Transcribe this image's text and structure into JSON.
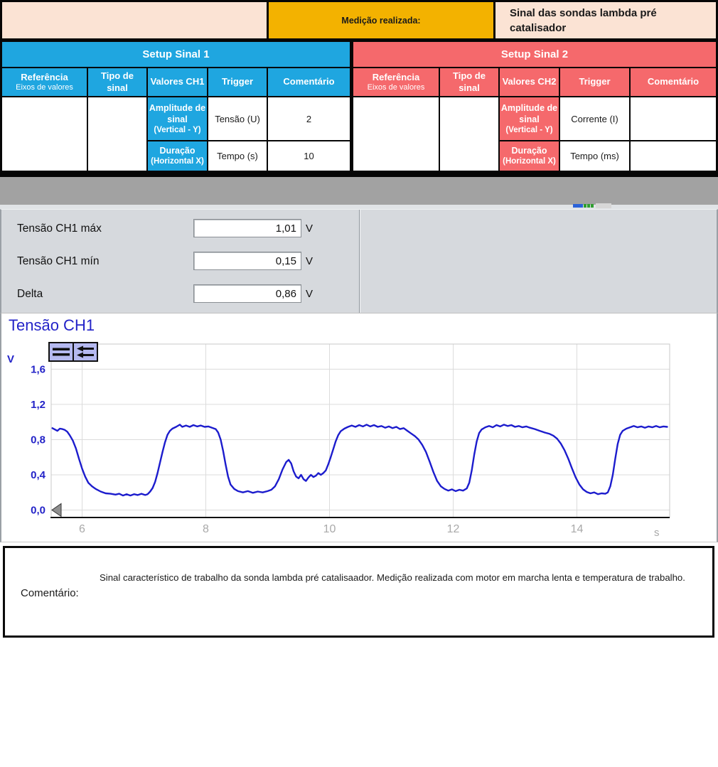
{
  "header": {
    "measured_label": "Medição realizada:",
    "measured_value": "Sinal das sondas lambda pré catalisador"
  },
  "setup_tables": [
    {
      "title": "Setup Sinal 1",
      "columns": [
        {
          "l1": "Referência",
          "l2": "Eixos de valores"
        },
        {
          "l1": "Tipo de",
          "l2": "sinal"
        },
        {
          "l1": "Valores CH1",
          "l2": ""
        },
        {
          "l1": "Trigger",
          "l2": ""
        },
        {
          "l1": "Comentário",
          "l2": ""
        }
      ],
      "rows": [
        {
          "ref1": "Amplitude de sinal",
          "ref2": "(Vertical - Y)",
          "tipo": "Tensão (U)",
          "valor": "2"
        },
        {
          "ref1": "Duração",
          "ref2": "(Horizontal X)",
          "tipo": "Tempo (s)",
          "valor": "10"
        }
      ],
      "trigger": "",
      "comentario": ""
    },
    {
      "title": "Setup Sinal 2",
      "columns": [
        {
          "l1": "Referência",
          "l2": "Eixos de valores"
        },
        {
          "l1": "Tipo de",
          "l2": "sinal"
        },
        {
          "l1": "Valores CH2",
          "l2": ""
        },
        {
          "l1": "Trigger",
          "l2": ""
        },
        {
          "l1": "Comentário",
          "l2": ""
        }
      ],
      "rows": [
        {
          "ref1": "Amplitude de sinal",
          "ref2": "(Vertical - Y)",
          "tipo": "Corrente (I)",
          "valor": ""
        },
        {
          "ref1": "Duração",
          "ref2": "(Horizontal X)",
          "tipo": "Tempo (ms)",
          "valor": ""
        }
      ],
      "trigger": "",
      "comentario": ""
    }
  ],
  "measurements": [
    {
      "label": "Tensão CH1 máx",
      "value": "1,01",
      "unit": "V"
    },
    {
      "label": "Tensão CH1 mín",
      "value": "0,15",
      "unit": "V"
    },
    {
      "label": "Delta",
      "value": "0,86",
      "unit": "V"
    }
  ],
  "chart_data": {
    "type": "line",
    "title": "Tensão CH1",
    "ylabel": "V",
    "xlabel": "s",
    "grid": true,
    "legend": "none",
    "xlim": [
      5.5,
      15.5
    ],
    "ylim": [
      -0.085,
      1.886
    ],
    "xticks": [
      {
        "v": 6,
        "label": "6"
      },
      {
        "v": 8,
        "label": "8"
      },
      {
        "v": 10,
        "label": "10"
      },
      {
        "v": 12,
        "label": "12"
      },
      {
        "v": 14,
        "label": "14"
      }
    ],
    "yticks": [
      {
        "v": 0.0,
        "label": "0,0"
      },
      {
        "v": 0.4,
        "label": "0,4"
      },
      {
        "v": 0.8,
        "label": "0,8"
      },
      {
        "v": 1.2,
        "label": "1,2"
      },
      {
        "v": 1.6,
        "label": "1,6"
      }
    ],
    "series": [
      {
        "name": "Tensão CH1",
        "color": "#1c1ccd",
        "points": [
          [
            5.52,
            0.93
          ],
          [
            5.56,
            0.915
          ],
          [
            5.6,
            0.9
          ],
          [
            5.64,
            0.925
          ],
          [
            5.68,
            0.92
          ],
          [
            5.72,
            0.91
          ],
          [
            5.76,
            0.89
          ],
          [
            5.8,
            0.85
          ],
          [
            5.85,
            0.79
          ],
          [
            5.9,
            0.7
          ],
          [
            5.95,
            0.58
          ],
          [
            6.0,
            0.47
          ],
          [
            6.05,
            0.38
          ],
          [
            6.1,
            0.31
          ],
          [
            6.16,
            0.27
          ],
          [
            6.22,
            0.24
          ],
          [
            6.3,
            0.21
          ],
          [
            6.38,
            0.19
          ],
          [
            6.46,
            0.185
          ],
          [
            6.54,
            0.175
          ],
          [
            6.6,
            0.185
          ],
          [
            6.66,
            0.165
          ],
          [
            6.72,
            0.18
          ],
          [
            6.78,
            0.165
          ],
          [
            6.84,
            0.18
          ],
          [
            6.9,
            0.17
          ],
          [
            6.96,
            0.185
          ],
          [
            7.02,
            0.17
          ],
          [
            7.06,
            0.18
          ],
          [
            7.1,
            0.21
          ],
          [
            7.14,
            0.25
          ],
          [
            7.18,
            0.32
          ],
          [
            7.22,
            0.42
          ],
          [
            7.26,
            0.54
          ],
          [
            7.3,
            0.66
          ],
          [
            7.34,
            0.77
          ],
          [
            7.38,
            0.855
          ],
          [
            7.42,
            0.9
          ],
          [
            7.46,
            0.925
          ],
          [
            7.52,
            0.945
          ],
          [
            7.58,
            0.97
          ],
          [
            7.62,
            0.945
          ],
          [
            7.68,
            0.96
          ],
          [
            7.74,
            0.945
          ],
          [
            7.8,
            0.965
          ],
          [
            7.86,
            0.95
          ],
          [
            7.92,
            0.96
          ],
          [
            7.98,
            0.945
          ],
          [
            8.04,
            0.95
          ],
          [
            8.1,
            0.935
          ],
          [
            8.16,
            0.92
          ],
          [
            8.2,
            0.88
          ],
          [
            8.24,
            0.8
          ],
          [
            8.28,
            0.67
          ],
          [
            8.32,
            0.52
          ],
          [
            8.36,
            0.38
          ],
          [
            8.4,
            0.29
          ],
          [
            8.46,
            0.24
          ],
          [
            8.52,
            0.215
          ],
          [
            8.6,
            0.2
          ],
          [
            8.68,
            0.215
          ],
          [
            8.76,
            0.195
          ],
          [
            8.84,
            0.21
          ],
          [
            8.92,
            0.2
          ],
          [
            9.0,
            0.215
          ],
          [
            9.06,
            0.23
          ],
          [
            9.12,
            0.27
          ],
          [
            9.18,
            0.35
          ],
          [
            9.24,
            0.46
          ],
          [
            9.3,
            0.545
          ],
          [
            9.34,
            0.57
          ],
          [
            9.38,
            0.53
          ],
          [
            9.42,
            0.44
          ],
          [
            9.46,
            0.38
          ],
          [
            9.5,
            0.36
          ],
          [
            9.54,
            0.4
          ],
          [
            9.58,
            0.35
          ],
          [
            9.62,
            0.33
          ],
          [
            9.66,
            0.37
          ],
          [
            9.7,
            0.4
          ],
          [
            9.74,
            0.375
          ],
          [
            9.78,
            0.39
          ],
          [
            9.82,
            0.42
          ],
          [
            9.86,
            0.4
          ],
          [
            9.9,
            0.42
          ],
          [
            9.94,
            0.45
          ],
          [
            9.98,
            0.52
          ],
          [
            10.02,
            0.6
          ],
          [
            10.06,
            0.69
          ],
          [
            10.1,
            0.78
          ],
          [
            10.14,
            0.85
          ],
          [
            10.18,
            0.895
          ],
          [
            10.24,
            0.925
          ],
          [
            10.3,
            0.945
          ],
          [
            10.36,
            0.96
          ],
          [
            10.42,
            0.945
          ],
          [
            10.48,
            0.965
          ],
          [
            10.54,
            0.95
          ],
          [
            10.6,
            0.97
          ],
          [
            10.66,
            0.95
          ],
          [
            10.72,
            0.965
          ],
          [
            10.78,
            0.945
          ],
          [
            10.84,
            0.955
          ],
          [
            10.9,
            0.935
          ],
          [
            10.96,
            0.95
          ],
          [
            11.02,
            0.93
          ],
          [
            11.08,
            0.945
          ],
          [
            11.14,
            0.92
          ],
          [
            11.2,
            0.93
          ],
          [
            11.26,
            0.9
          ],
          [
            11.32,
            0.87
          ],
          [
            11.38,
            0.84
          ],
          [
            11.44,
            0.8
          ],
          [
            11.5,
            0.74
          ],
          [
            11.56,
            0.66
          ],
          [
            11.62,
            0.55
          ],
          [
            11.68,
            0.43
          ],
          [
            11.74,
            0.33
          ],
          [
            11.8,
            0.27
          ],
          [
            11.86,
            0.24
          ],
          [
            11.92,
            0.22
          ],
          [
            11.98,
            0.235
          ],
          [
            12.04,
            0.215
          ],
          [
            12.1,
            0.23
          ],
          [
            12.16,
            0.22
          ],
          [
            12.22,
            0.245
          ],
          [
            12.26,
            0.31
          ],
          [
            12.3,
            0.45
          ],
          [
            12.34,
            0.63
          ],
          [
            12.38,
            0.78
          ],
          [
            12.42,
            0.875
          ],
          [
            12.46,
            0.915
          ],
          [
            12.52,
            0.94
          ],
          [
            12.58,
            0.955
          ],
          [
            12.64,
            0.94
          ],
          [
            12.7,
            0.965
          ],
          [
            12.76,
            0.95
          ],
          [
            12.82,
            0.97
          ],
          [
            12.88,
            0.955
          ],
          [
            12.94,
            0.965
          ],
          [
            13.0,
            0.945
          ],
          [
            13.06,
            0.955
          ],
          [
            13.12,
            0.94
          ],
          [
            13.18,
            0.95
          ],
          [
            13.24,
            0.935
          ],
          [
            13.32,
            0.92
          ],
          [
            13.4,
            0.9
          ],
          [
            13.48,
            0.88
          ],
          [
            13.56,
            0.865
          ],
          [
            13.62,
            0.845
          ],
          [
            13.68,
            0.81
          ],
          [
            13.74,
            0.755
          ],
          [
            13.8,
            0.68
          ],
          [
            13.86,
            0.585
          ],
          [
            13.92,
            0.475
          ],
          [
            13.98,
            0.37
          ],
          [
            14.04,
            0.29
          ],
          [
            14.1,
            0.235
          ],
          [
            14.16,
            0.205
          ],
          [
            14.22,
            0.19
          ],
          [
            14.28,
            0.2
          ],
          [
            14.34,
            0.18
          ],
          [
            14.4,
            0.19
          ],
          [
            14.46,
            0.185
          ],
          [
            14.5,
            0.2
          ],
          [
            14.54,
            0.27
          ],
          [
            14.58,
            0.4
          ],
          [
            14.62,
            0.58
          ],
          [
            14.66,
            0.75
          ],
          [
            14.7,
            0.855
          ],
          [
            14.74,
            0.9
          ],
          [
            14.8,
            0.925
          ],
          [
            14.86,
            0.94
          ],
          [
            14.92,
            0.955
          ],
          [
            14.98,
            0.94
          ],
          [
            15.04,
            0.95
          ],
          [
            15.1,
            0.935
          ],
          [
            15.16,
            0.95
          ],
          [
            15.22,
            0.94
          ],
          [
            15.28,
            0.955
          ],
          [
            15.34,
            0.94
          ],
          [
            15.4,
            0.95
          ],
          [
            15.46,
            0.945
          ]
        ]
      }
    ]
  },
  "comment": {
    "label": "Comentário:",
    "text": "Sinal característico de trabalho da sonda lambda pré catalisaador.  Medição realizada com motor em marcha lenta e temperatura de trabalho."
  },
  "colors": {
    "setup1_accent": "#1fa6e0",
    "setup2_accent": "#f5696c",
    "header_orange": "#f3b200",
    "header_peach": "#fbe3d4",
    "axis_blue": "#2323c8",
    "trace_blue": "#1c1ccd"
  }
}
